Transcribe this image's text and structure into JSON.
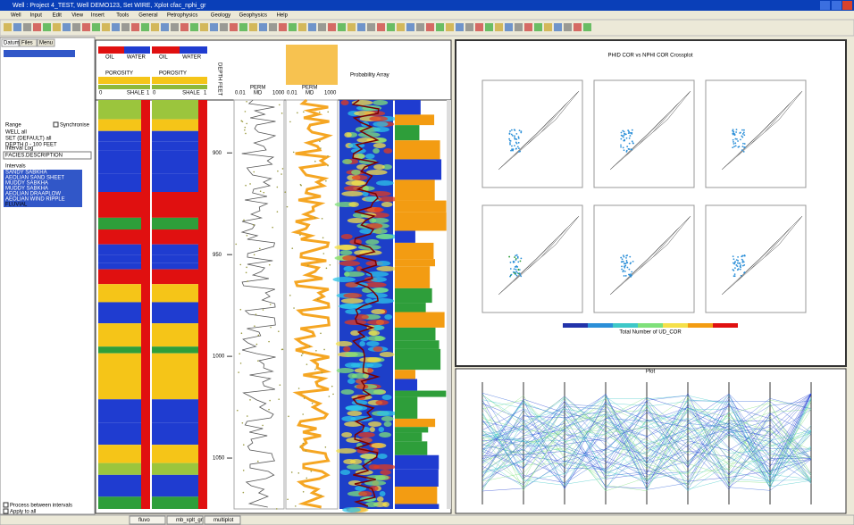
{
  "window": {
    "title": "Well : Project 4_TEST, Well DEMO123, Set WIRE, Xplot cfac_nphi_gr"
  },
  "menu": [
    "Well",
    "Input",
    "Edit",
    "View",
    "Insert",
    "Tools",
    "General",
    "Petrophysics",
    "Geology",
    "Geophysics",
    "Help"
  ],
  "side_panel": {
    "tabs": [
      "Datum",
      "Files",
      "Menu"
    ],
    "range_label": "Range",
    "synchronise": "Synchronise",
    "range_items": [
      "WELL all",
      "SET (DEFAULT) all",
      "DEPTH 0 - 100 FEET"
    ],
    "interval_log_label": "Interval Log",
    "interval_log": "FACIES.DESCRIPTION",
    "intervals_label": "Intervals",
    "intervals": [
      "SANDY SABKHA",
      "AEOLIAN SAND SHEET",
      "MUDDY SABKHA",
      "MUDDY SABKHA",
      "AEOLIAN DRAAPLOW",
      "AEOLIAN WIND RIPPLE",
      "FLUVIAL"
    ],
    "process_option": "Process between intervals",
    "apply_option": "Apply to all"
  },
  "log_plot": {
    "track_labels": [
      "OIL",
      "WATER",
      "POROSITY",
      "SHALE"
    ],
    "scale_labels": [
      "0",
      "1"
    ],
    "depth_title": "DEPTH FEET",
    "perm_labels": [
      "PERM",
      "0.01",
      "MD",
      "1000"
    ],
    "probability": "Probability Array",
    "depth_range": [
      874,
      1075
    ],
    "depth_ticks": [
      900,
      950,
      1000,
      1050
    ]
  },
  "crossplot": {
    "title": "PHID COR vs NPHI COR Crossplot",
    "colorbar_label": "Total Number of UD_COR"
  },
  "parallel": {
    "title": "Plot"
  },
  "taskbar": [
    "fluvo",
    "mb_xplt_gr",
    "multiplot"
  ]
}
